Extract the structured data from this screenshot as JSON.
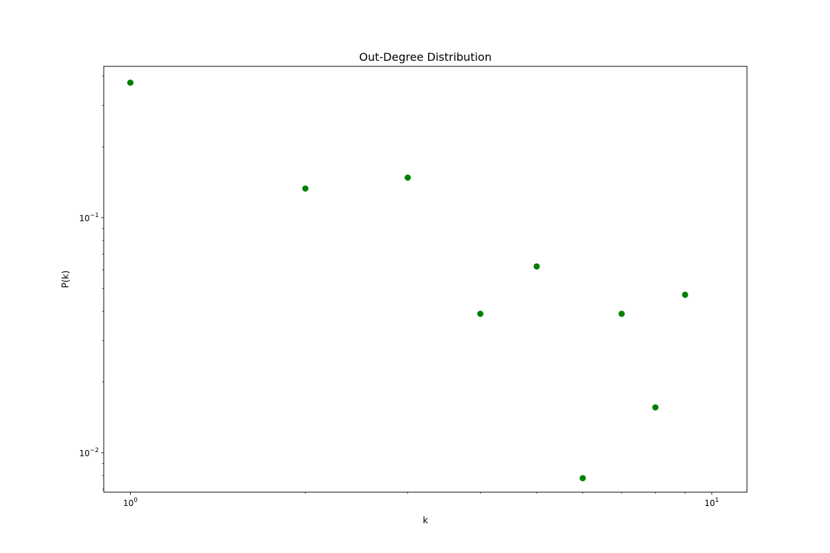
{
  "chart_data": {
    "type": "scatter",
    "title": "Out-Degree Distribution",
    "xlabel": "k",
    "ylabel": "P(k)",
    "xscale": "log",
    "yscale": "log",
    "xlim": [
      0.9,
      11.5
    ],
    "ylim": [
      0.0068,
      0.44
    ],
    "grid": false,
    "marker_color": "#008000",
    "x_ticks": [
      {
        "value": 1,
        "base": "10",
        "exp": "0"
      },
      {
        "value": 10,
        "base": "10",
        "exp": "1"
      }
    ],
    "y_ticks": [
      {
        "value": 0.01,
        "base": "10",
        "exp": "−2"
      },
      {
        "value": 0.1,
        "base": "10",
        "exp": "−1"
      }
    ],
    "points": [
      {
        "x": 1,
        "y": 0.375
      },
      {
        "x": 2,
        "y": 0.133
      },
      {
        "x": 3,
        "y": 0.148
      },
      {
        "x": 4,
        "y": 0.039
      },
      {
        "x": 5,
        "y": 0.062
      },
      {
        "x": 6,
        "y": 0.0078
      },
      {
        "x": 7,
        "y": 0.039
      },
      {
        "x": 8,
        "y": 0.0156
      },
      {
        "x": 9,
        "y": 0.047
      }
    ]
  }
}
